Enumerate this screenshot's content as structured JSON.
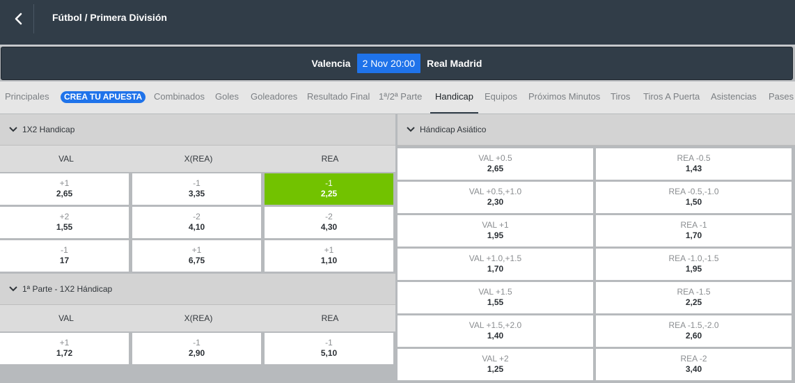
{
  "header": {
    "breadcrumb": "Fútbol / Primera División"
  },
  "match": {
    "home": "Valencia",
    "date": "2 Nov 20:00",
    "away": "Real Madrid"
  },
  "tabs": [
    {
      "label": "Principales"
    },
    {
      "label": "CREA TU APUESTA"
    },
    {
      "label": "Combinados"
    },
    {
      "label": "Goles"
    },
    {
      "label": "Goleadores"
    },
    {
      "label": "Resultado Final"
    },
    {
      "label": "1ª/2ª Parte"
    },
    {
      "label": "Handicap",
      "active": true
    },
    {
      "label": "Equipos"
    },
    {
      "label": "Próximos Minutos"
    },
    {
      "label": "Tiros"
    },
    {
      "label": "Tiros A Puerta"
    },
    {
      "label": "Asistencias"
    },
    {
      "label": "Pases"
    }
  ],
  "handicap_1x2": {
    "title": "1X2 Handicap",
    "columns": [
      "VAL",
      "X(REA)",
      "REA"
    ],
    "rows": [
      [
        {
          "line": "+1",
          "odd": "2,65"
        },
        {
          "line": "-1",
          "odd": "3,35"
        },
        {
          "line": "-1",
          "odd": "2,25",
          "selected": true
        }
      ],
      [
        {
          "line": "+2",
          "odd": "1,55"
        },
        {
          "line": "-2",
          "odd": "4,10"
        },
        {
          "line": "-2",
          "odd": "4,30"
        }
      ],
      [
        {
          "line": "-1",
          "odd": "17"
        },
        {
          "line": "+1",
          "odd": "6,75"
        },
        {
          "line": "+1",
          "odd": "1,10"
        }
      ]
    ]
  },
  "first_half_handicap": {
    "title": "1ª Parte - 1X2 Hándicap",
    "columns": [
      "VAL",
      "X(REA)",
      "REA"
    ],
    "rows": [
      [
        {
          "line": "+1",
          "odd": "1,72"
        },
        {
          "line": "-1",
          "odd": "2,90"
        },
        {
          "line": "-1",
          "odd": "5,10"
        }
      ]
    ]
  },
  "asian_handicap": {
    "title": "Hándicap Asiático",
    "rows": [
      [
        {
          "line": "VAL +0.5",
          "odd": "2,65"
        },
        {
          "line": "REA -0.5",
          "odd": "1,43"
        }
      ],
      [
        {
          "line": "VAL +0.5,+1.0",
          "odd": "2,30"
        },
        {
          "line": "REA -0.5,-1.0",
          "odd": "1,50"
        }
      ],
      [
        {
          "line": "VAL +1",
          "odd": "1,95"
        },
        {
          "line": "REA -1",
          "odd": "1,70"
        }
      ],
      [
        {
          "line": "VAL +1.0,+1.5",
          "odd": "1,70"
        },
        {
          "line": "REA -1.0,-1.5",
          "odd": "1,95"
        }
      ],
      [
        {
          "line": "VAL +1.5",
          "odd": "1,55"
        },
        {
          "line": "REA -1.5",
          "odd": "2,25"
        }
      ],
      [
        {
          "line": "VAL +1.5,+2.0",
          "odd": "1,40"
        },
        {
          "line": "REA -1.5,-2.0",
          "odd": "2,60"
        }
      ],
      [
        {
          "line": "VAL +2",
          "odd": "1,25"
        },
        {
          "line": "REA -2",
          "odd": "3,40"
        }
      ]
    ]
  },
  "colors": {
    "header_bg": "#313d48",
    "accent": "#1f73ea",
    "selected": "#72c200"
  }
}
